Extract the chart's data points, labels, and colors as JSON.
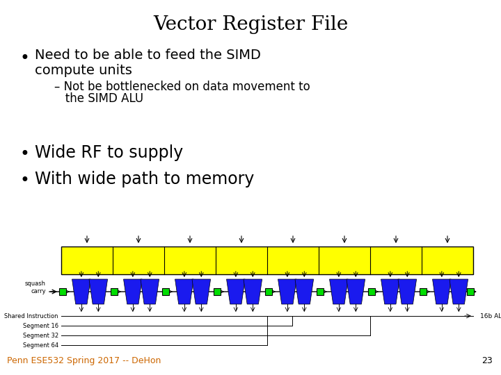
{
  "title": "Vector Register File",
  "bullet1_line1": "Need to be able to feed the SIMD",
  "bullet1_line2": "compute units",
  "sub_bullet": "– Not be bottlenecked on data movement to",
  "sub_bullet2": "   the SIMD ALU",
  "bullet2": "Wide RF to supply",
  "bullet3": "With wide path to memory",
  "footer": "Penn ESE532 Spring 2017 -- DeHon",
  "page_num": "23",
  "background_color": "#ffffff",
  "title_fontsize": 20,
  "bullet_fontsize": 14,
  "sub_bullet_fontsize": 12,
  "footer_fontsize": 9,
  "yellow_color": "#ffff00",
  "blue_color": "#1a1aee",
  "green_color": "#00dd00",
  "num_alu_blocks": 8
}
